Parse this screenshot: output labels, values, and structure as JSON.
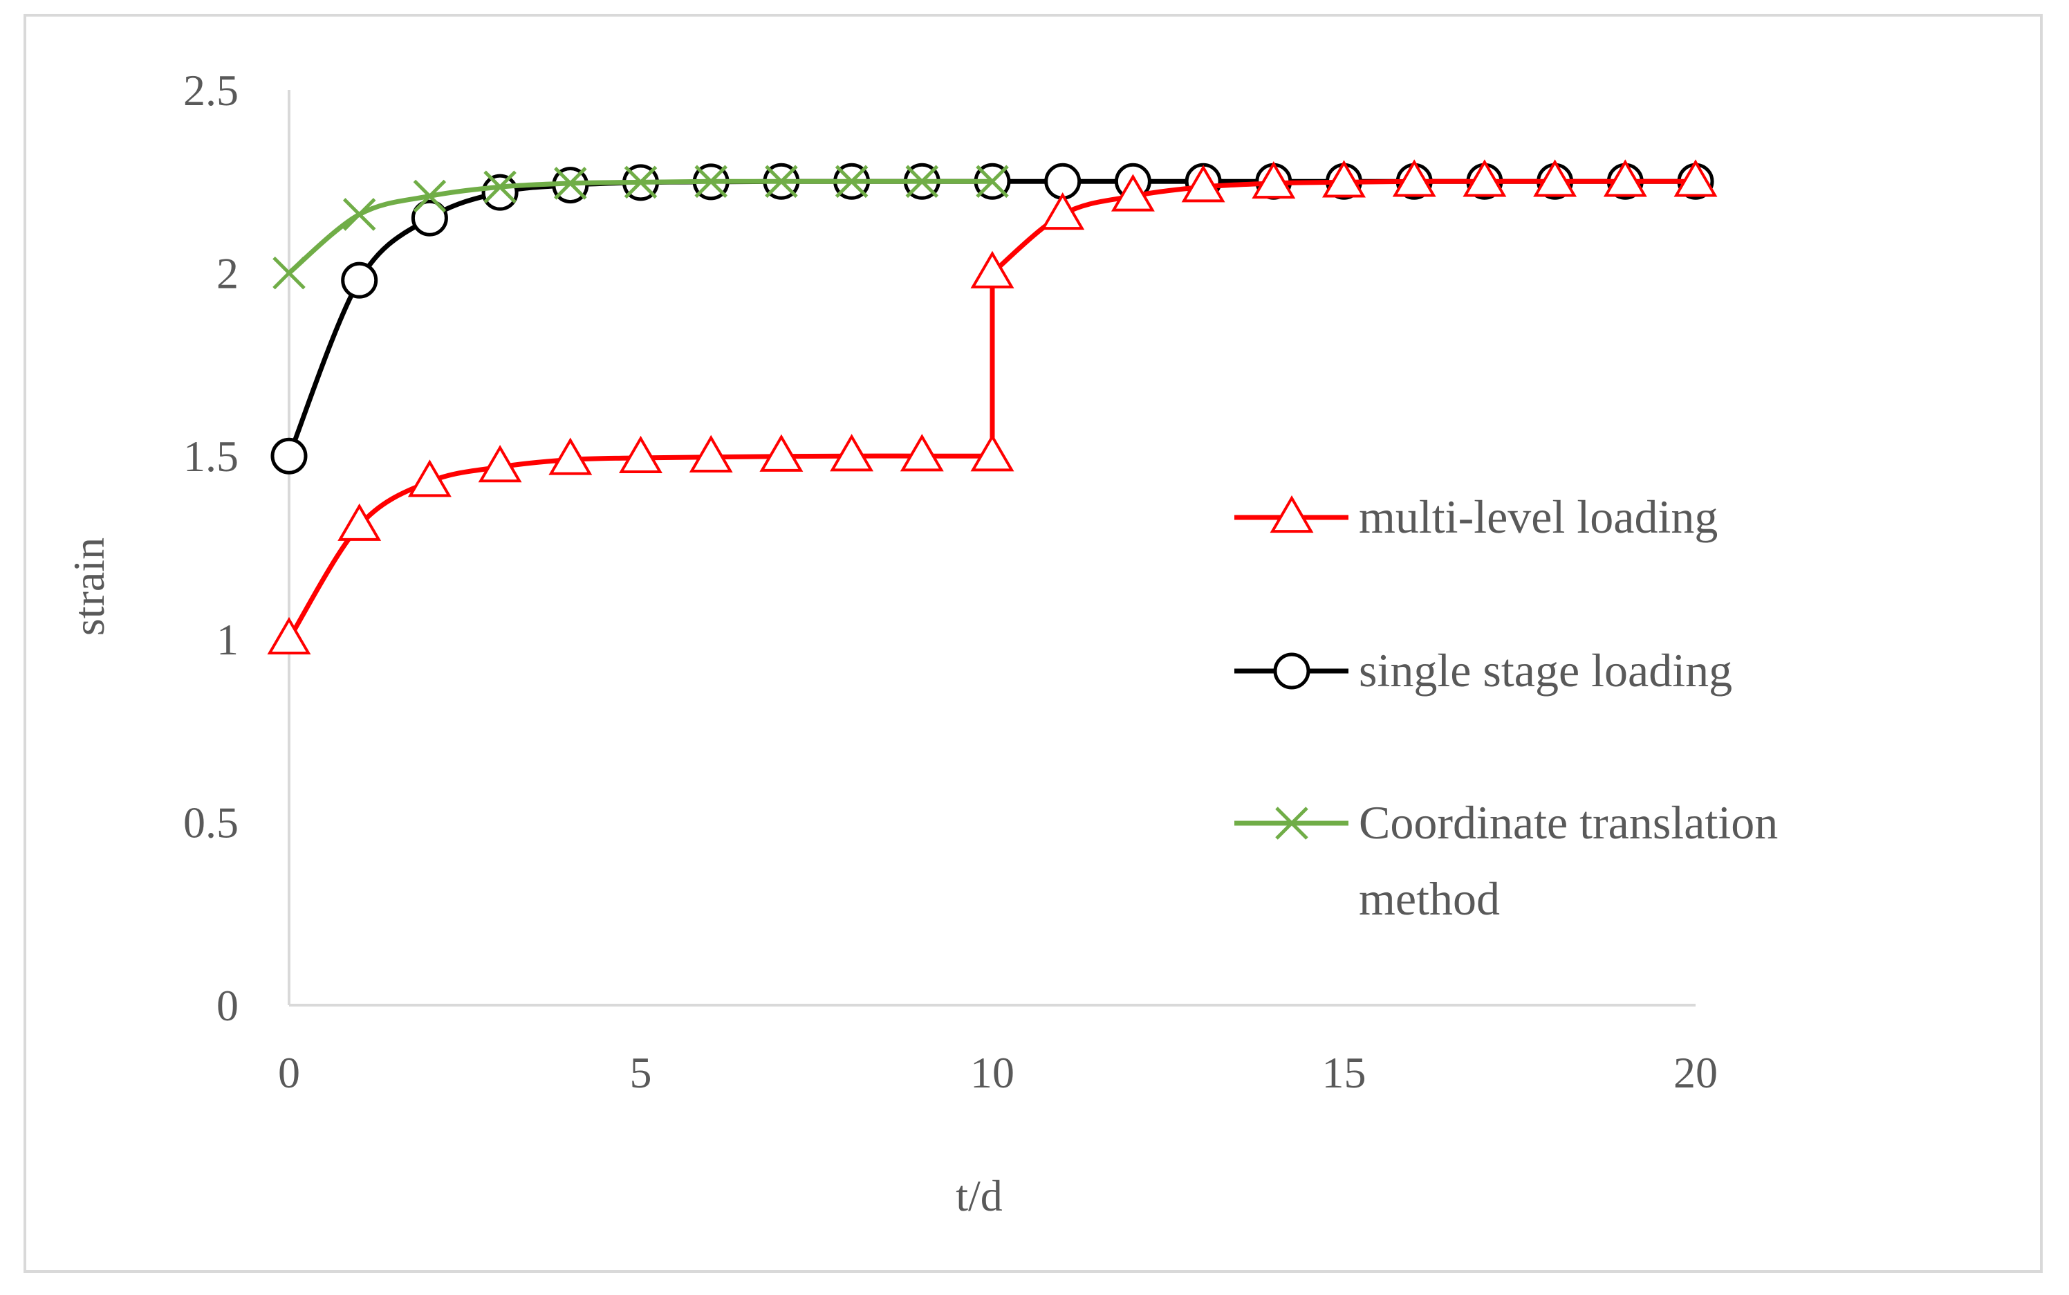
{
  "chart_data": {
    "type": "line",
    "title": "",
    "xlabel": "t/d",
    "ylabel": "strain",
    "xlim": [
      0,
      20
    ],
    "ylim": [
      0,
      2.5
    ],
    "xticks": [
      0,
      5,
      10,
      15,
      20
    ],
    "xtick_labels": [
      "0",
      "5",
      "10",
      "15",
      "20"
    ],
    "yticks": [
      0,
      0.5,
      1,
      1.5,
      2,
      2.5
    ],
    "ytick_labels": [
      "0",
      "0.5",
      "1",
      "1.5",
      "2",
      "2.5"
    ],
    "grid": false,
    "legend_position": "right",
    "series": [
      {
        "name": "multi-level loading",
        "color": "#ff0000",
        "marker": "triangle",
        "x": [
          0,
          1,
          2,
          3,
          4,
          5,
          6,
          7,
          8,
          9,
          10,
          10,
          11,
          12,
          13,
          14,
          15,
          16,
          17,
          18,
          19,
          20
        ],
        "y": [
          1.0,
          1.31,
          1.43,
          1.47,
          1.49,
          1.495,
          1.497,
          1.499,
          1.5,
          1.5,
          1.5,
          2.0,
          2.16,
          2.21,
          2.235,
          2.245,
          2.248,
          2.25,
          2.25,
          2.25,
          2.25,
          2.25
        ]
      },
      {
        "name": "single stage loading",
        "color": "#000000",
        "marker": "circle",
        "x": [
          0,
          1,
          2,
          3,
          4,
          5,
          6,
          7,
          8,
          9,
          10,
          11,
          12,
          13,
          14,
          15,
          16,
          17,
          18,
          19,
          20
        ],
        "y": [
          1.5,
          1.98,
          2.15,
          2.22,
          2.24,
          2.247,
          2.249,
          2.25,
          2.25,
          2.25,
          2.25,
          2.25,
          2.25,
          2.25,
          2.25,
          2.25,
          2.25,
          2.25,
          2.25,
          2.25,
          2.25
        ]
      },
      {
        "name": "Coordinate translation method",
        "name_lines": [
          "Coordinate translation",
          "method"
        ],
        "color": "#70ad47",
        "marker": "x",
        "x": [
          0,
          1,
          2,
          3,
          4,
          5,
          6,
          7,
          8,
          9,
          10
        ],
        "y": [
          2.0,
          2.16,
          2.21,
          2.235,
          2.245,
          2.248,
          2.25,
          2.25,
          2.25,
          2.25,
          2.25
        ]
      }
    ]
  }
}
